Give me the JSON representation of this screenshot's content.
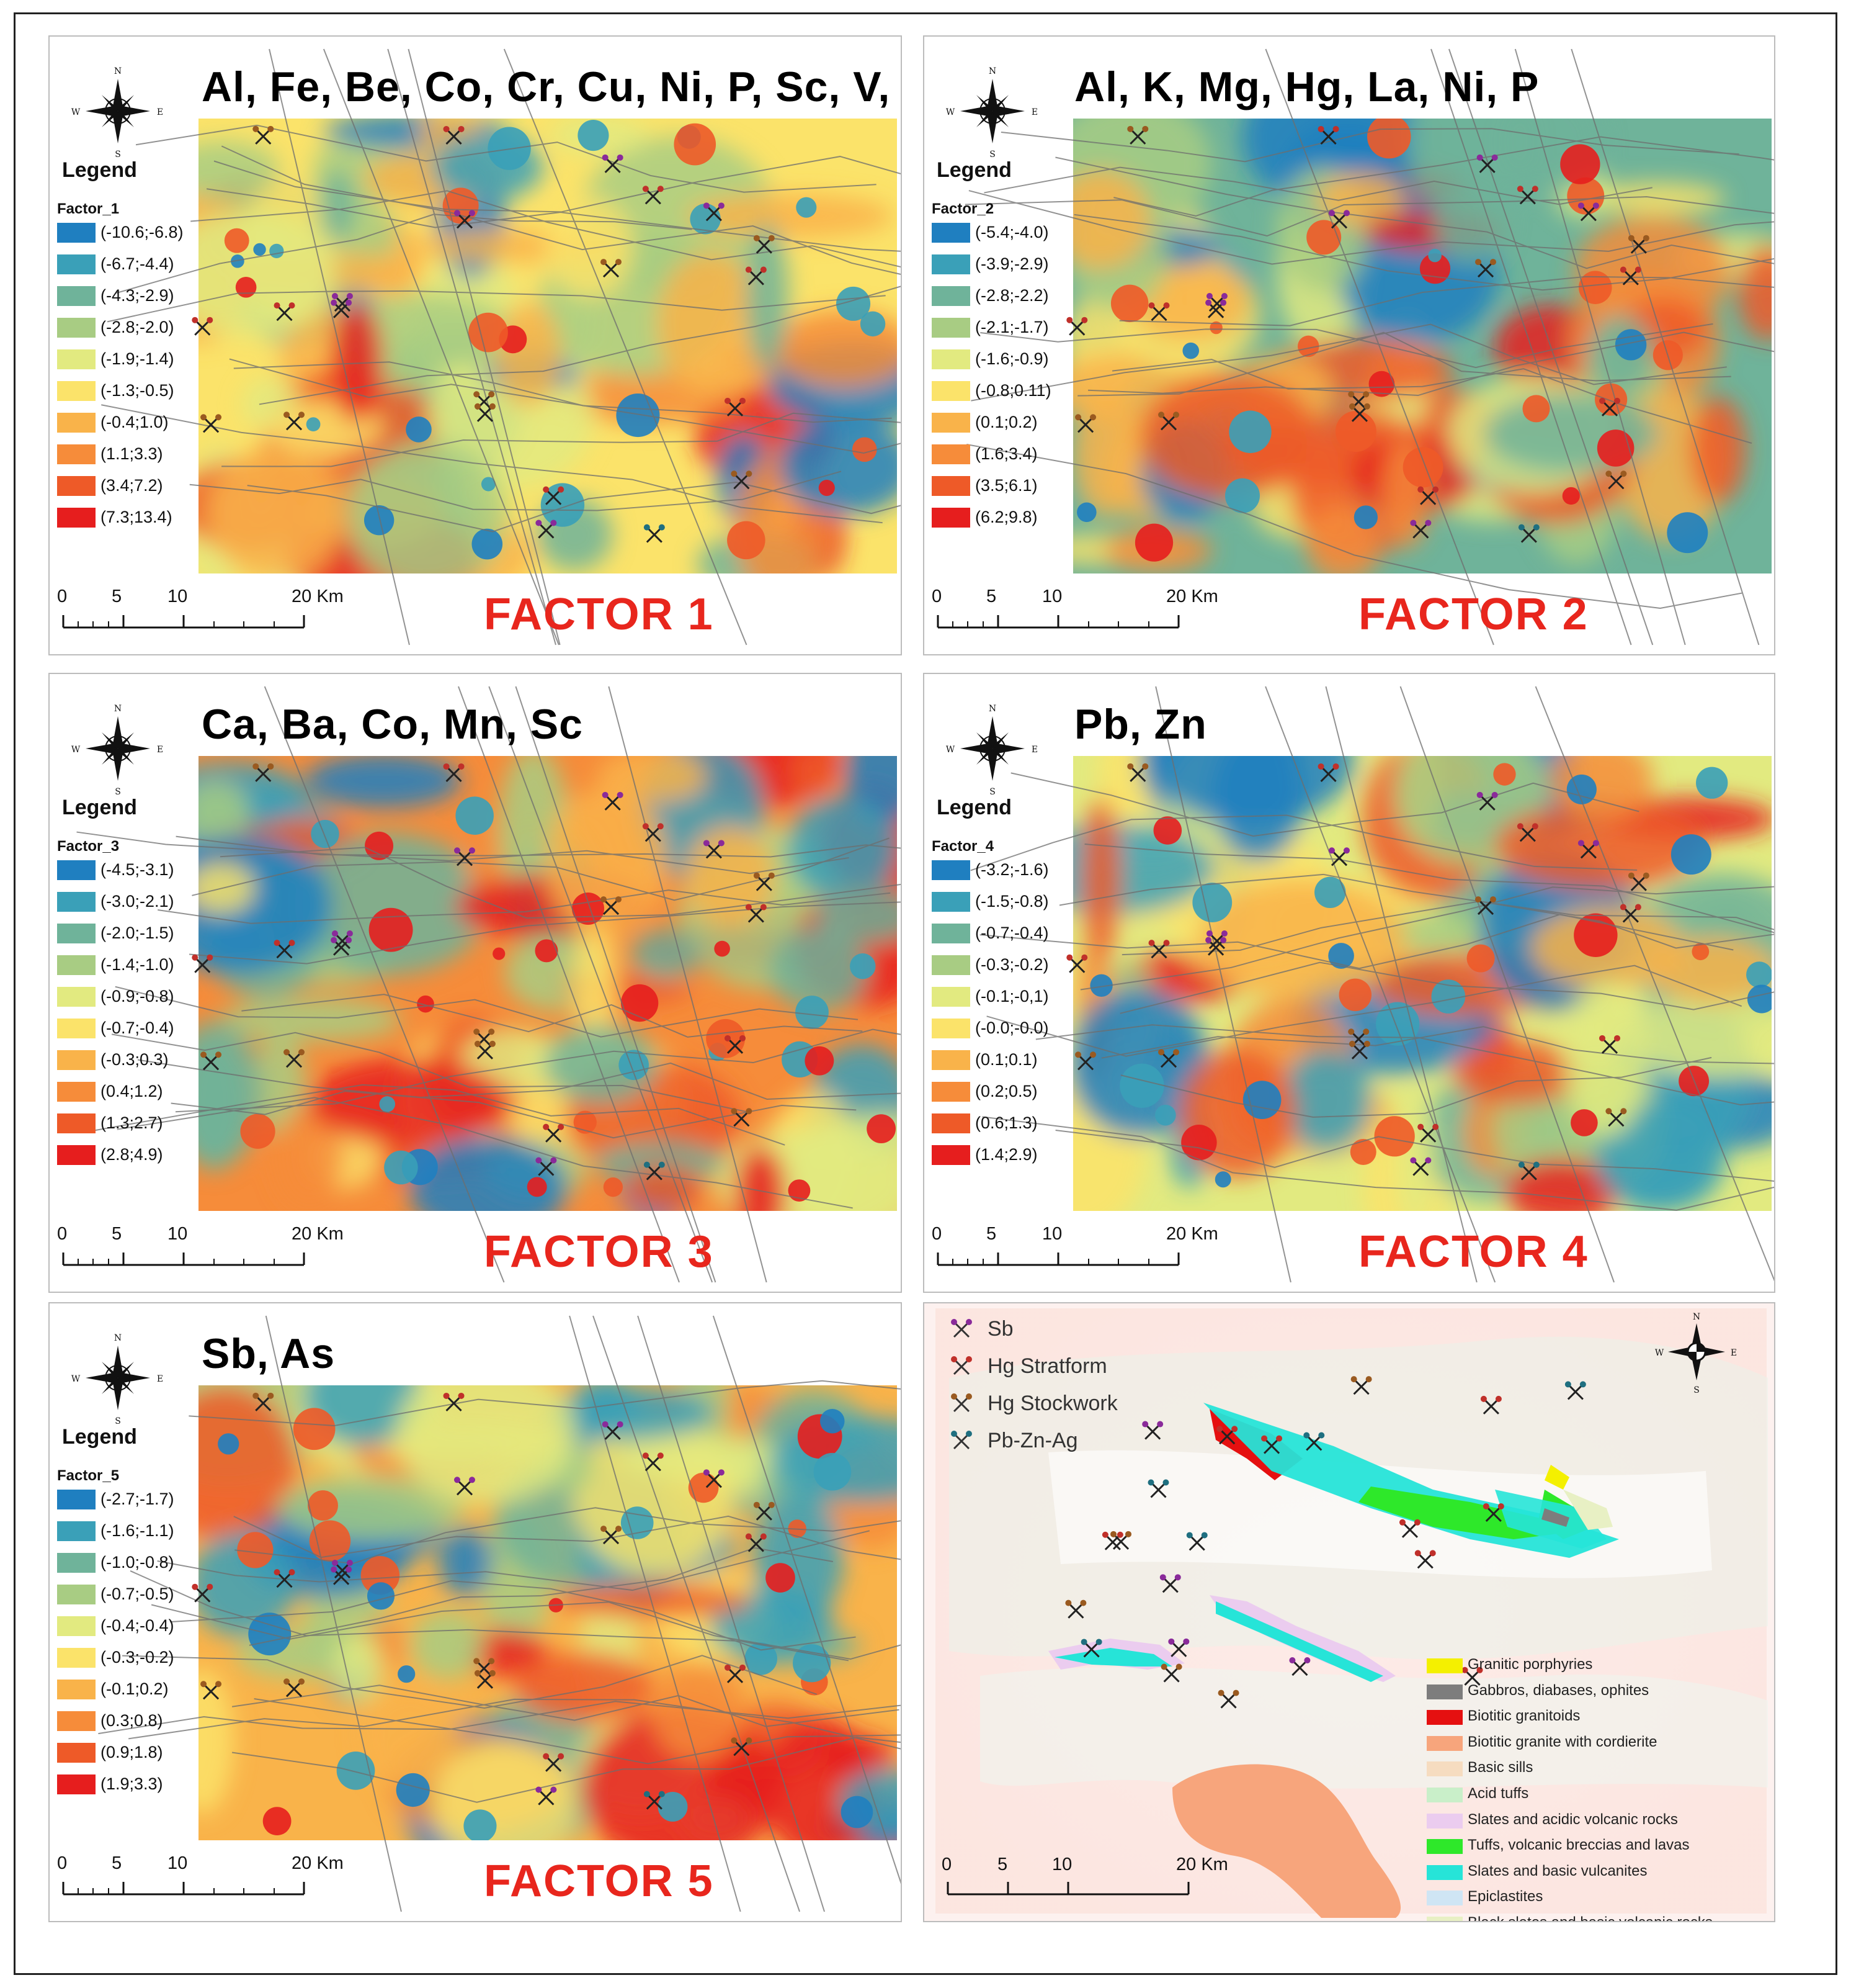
{
  "panels": [
    {
      "title": "Al, Fe, Be, Co, Cr, Cu, Ni, P, Sc, V, Zn",
      "factor_label": "FACTOR 1",
      "legend_title": "Legend",
      "legend_field": "Factor_1",
      "classes": [
        "(-10.6;-6.8)",
        "(-6.7;-4.4)",
        "(-4.3;-2.9)",
        "(-2.8;-2.0)",
        "(-1.9;-1.4)",
        "(-1.3;-0.5)",
        "(-0.4;1.0)",
        "(1.1;3.3)",
        "(3.4;7.2)",
        "(7.3;13.4)"
      ]
    },
    {
      "title": "Al, K, Mg, Hg, La, Ni, P",
      "factor_label": "FACTOR 2",
      "legend_title": "Legend",
      "legend_field": "Factor_2",
      "classes": [
        "(-5.4;-4.0)",
        "(-3.9;-2.9)",
        "(-2.8;-2.2)",
        "(-2.1;-1.7)",
        "(-1.6;-0.9)",
        "(-0.8;0.11)",
        "(0.1;0.2)",
        "(1.6;3.4)",
        "(3.5;6.1)",
        "(6.2;9.8)"
      ]
    },
    {
      "title": "Ca, Ba, Co, Mn, Sc",
      "factor_label": "FACTOR 3",
      "legend_title": "Legend",
      "legend_field": "Factor_3",
      "classes": [
        "(-4.5;-3.1)",
        "(-3.0;-2.1)",
        "(-2.0;-1.5)",
        "(-1.4;-1.0)",
        "(-0.9;-0.8)",
        "(-0.7;-0.4)",
        "(-0.3;0.3)",
        "(0.4;1.2)",
        "(1.3;2.7)",
        "(2.8;4.9)"
      ]
    },
    {
      "title": "Pb, Zn",
      "factor_label": "FACTOR 4",
      "legend_title": "Legend",
      "legend_field": "Factor_4",
      "classes": [
        "(-3.2;-1.6)",
        "(-1.5;-0.8)",
        "(-0.7;-0.4)",
        "(-0.3;-0.2)",
        "(-0.1;-0,1)",
        "(-0.0;-0.0)",
        "(0.1;0.1)",
        "(0.2;0.5)",
        "(0.6;1.3)",
        "(1.4;2.9)"
      ]
    },
    {
      "title": "Sb, As",
      "factor_label": "FACTOR 5",
      "legend_title": "Legend",
      "legend_field": "Factor_5",
      "classes": [
        "(-2.7;-1.7)",
        "(-1.6;-1.1)",
        "(-1.0;-0.8)",
        "(-0.7;-0.5)",
        "(-0.4;-0.4)",
        "(-0.3;-0.2)",
        "(-0.1;0.2)",
        "(0.3;0.8)",
        "(0.9;1.8)",
        "(1.9;3.3)"
      ]
    }
  ],
  "class_colors": [
    "#1f7fc0",
    "#3aa0b8",
    "#6fb39a",
    "#a8cc83",
    "#e2ea80",
    "#fbe36a",
    "#f9b34a",
    "#f68c3a",
    "#ee5a28",
    "#e61e1e"
  ],
  "scale_bar": {
    "labels": [
      "0",
      "5",
      "10",
      "20 Km"
    ]
  },
  "compass": {
    "n": "N",
    "s": "S",
    "e": "E",
    "w": "W"
  },
  "geology_map": {
    "mineral_legend": [
      {
        "label": "Sb",
        "color": "#8a2a9a"
      },
      {
        "label": "Hg Stratform",
        "color": "#c0302a"
      },
      {
        "label": "Hg Stockwork",
        "color": "#9a5a20"
      },
      {
        "label": "Pb-Zn-Ag",
        "color": "#1f6f80"
      }
    ],
    "units": [
      {
        "label": "Granitic porphyries",
        "color": "#f4f000"
      },
      {
        "label": "Gabbros, diabases, ophites",
        "color": "#7d7d7d"
      },
      {
        "label": "Biotitic granitoids",
        "color": "#e51010"
      },
      {
        "label": "Biotitic granite with cordierite",
        "color": "#f7a57c"
      },
      {
        "label": "Basic sills",
        "color": "#f6dcc0"
      },
      {
        "label": "Acid tuffs",
        "color": "#c9efc9"
      },
      {
        "label": "Slates and acidic volcanic rocks",
        "color": "#ebccef"
      },
      {
        "label": "Tuffs, volcanic breccias and lavas",
        "color": "#2ee82a"
      },
      {
        "label": "Slates and basic vulcanites",
        "color": "#26e4d8"
      },
      {
        "label": "Epiclastites",
        "color": "#cfe5f4"
      },
      {
        "label": "Black slates and basic volcanic rocks",
        "color": "#e8f0c4"
      }
    ]
  }
}
